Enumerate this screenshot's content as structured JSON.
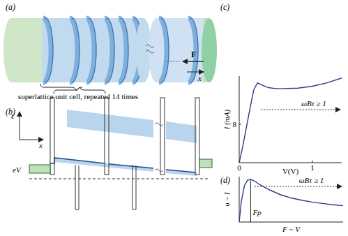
{
  "panel_a": {
    "label": "(a)",
    "caption": "superlattice unit cell, repeated 14 times",
    "force_label": "F",
    "axis_label": "x"
  },
  "panel_b": {
    "label": "(b)",
    "energy_label": "ε",
    "axis_label": "x",
    "bias_label": "eV"
  },
  "chart_data": [
    {
      "type": "line",
      "title": "(c)",
      "x_label": "V(V)",
      "y_label": "I (mA)",
      "x": [
        0,
        0.05,
        0.1,
        0.15,
        0.2,
        0.25,
        0.3,
        0.4,
        0.5,
        0.6,
        0.8,
        1.0,
        1.2,
        1.4
      ],
      "values": [
        0,
        3.5,
        7.5,
        11.5,
        15.2,
        16.6,
        16.2,
        15.6,
        15.4,
        15.4,
        15.5,
        15.9,
        16.6,
        17.6
      ],
      "color": "#2b3a8c",
      "xlim": [
        0,
        1.4
      ],
      "ylim": [
        0,
        18
      ],
      "xticks": [
        0,
        1
      ],
      "yticks": [
        8
      ],
      "annotations": [
        "ωBτ ≥ 1"
      ]
    },
    {
      "type": "line",
      "title": "(d)",
      "x_label": "F ~ V",
      "y_label": "υ ~ I",
      "x": [
        0,
        0.02,
        0.05,
        0.08,
        0.11,
        0.15,
        0.2,
        0.3,
        0.4,
        0.5,
        0.6,
        0.7,
        0.8,
        0.9,
        1.0
      ],
      "values": [
        0,
        0.45,
        0.8,
        0.92,
        0.94,
        0.9,
        0.82,
        0.7,
        0.6,
        0.53,
        0.48,
        0.44,
        0.41,
        0.38,
        0.36
      ],
      "color": "#2b3a8c",
      "xlim": [
        0,
        1
      ],
      "ylim": [
        0,
        1
      ],
      "xticks": [
        {
          "value": 0.11,
          "label": "Fp"
        }
      ],
      "yticks": [],
      "tick_labels": "x",
      "annotations": [
        "ωBτ ≥ 1"
      ]
    }
  ]
}
